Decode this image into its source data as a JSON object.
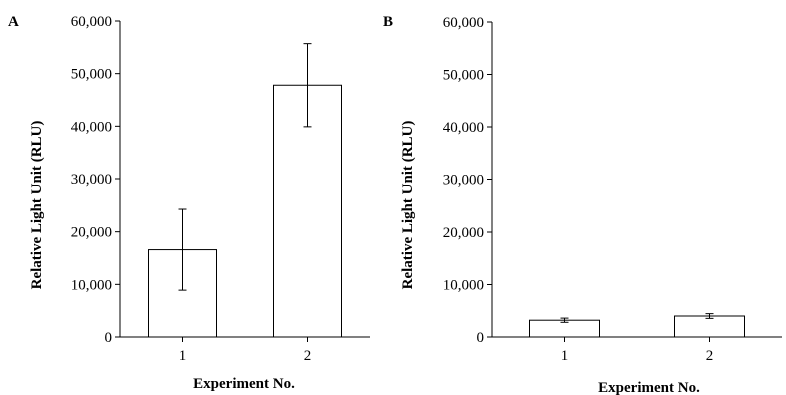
{
  "chart_data": [
    {
      "type": "bar",
      "panel_label": "A",
      "categories": [
        "1",
        "2"
      ],
      "values": [
        16600,
        47800
      ],
      "errors": [
        7700,
        7900
      ],
      "xlabel": "Experiment No.",
      "ylabel": "Relative Light Unit (RLU)",
      "ylim": [
        0,
        60000
      ],
      "yticks": [
        "0",
        "10,000",
        "20,000",
        "30,000",
        "40,000",
        "50,000",
        "60,000"
      ],
      "grid": false
    },
    {
      "type": "bar",
      "panel_label": "B",
      "categories": [
        "1",
        "2"
      ],
      "values": [
        3200,
        4000
      ],
      "errors": [
        400,
        450
      ],
      "xlabel": "Experiment No.",
      "ylabel": "Relative Light Unit (RLU)",
      "ylim": [
        0,
        60000
      ],
      "yticks": [
        "0",
        "10,000",
        "20,000",
        "30,000",
        "40,000",
        "50,000",
        "60,000"
      ],
      "grid": false
    }
  ]
}
